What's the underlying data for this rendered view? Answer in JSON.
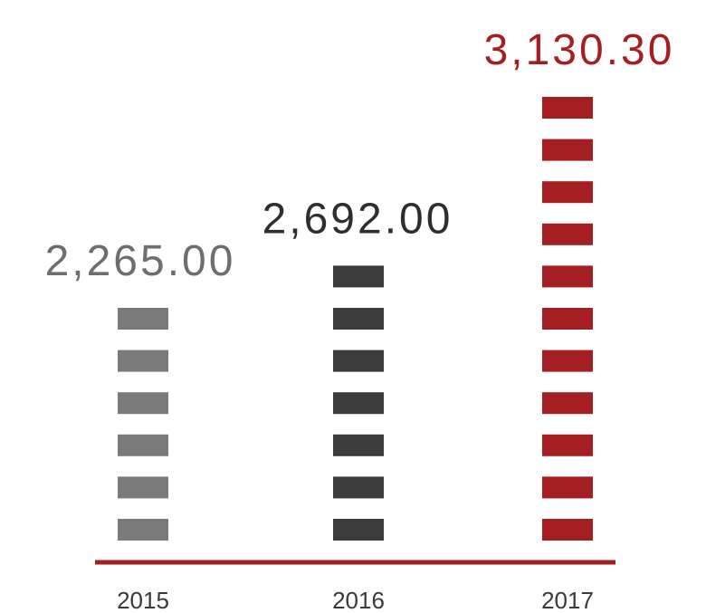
{
  "chart_data": {
    "type": "bar",
    "style": "stacked-segment pictogram bars",
    "categories": [
      "2015",
      "2016",
      "2017"
    ],
    "values": [
      2265.0,
      2692.0,
      3130.3
    ],
    "value_labels": [
      "2,265.00",
      "2,692.00",
      "3,130.30"
    ],
    "segments_per_bar": [
      6,
      7,
      11
    ],
    "bar_colors": [
      "#7a7a7a",
      "#3b3b3b",
      "#a51f22"
    ],
    "label_colors": [
      "#6e6e6e",
      "#2e2e2e",
      "#a51f22"
    ],
    "axis_color": "#a51f22",
    "grid": false,
    "legend": "none",
    "title": "",
    "xlabel": "",
    "ylabel": ""
  }
}
